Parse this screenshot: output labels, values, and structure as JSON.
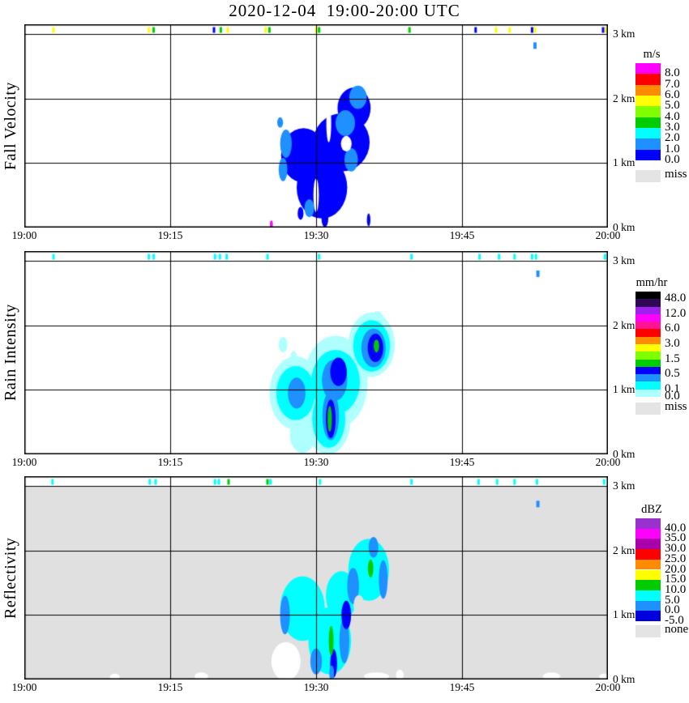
{
  "title": "2020-12-04  19:00-20:00 UTC",
  "chart_data": [
    {
      "type": "heatmap",
      "ylabel": "Fall Velocity",
      "background": "#FFFFFF",
      "x_axis": {
        "start": "19:00",
        "end": "20:00"
      },
      "xticks": [
        {
          "t": 0,
          "label": "19:00"
        },
        {
          "t": 15,
          "label": "19:15"
        },
        {
          "t": 30,
          "label": "19:30"
        },
        {
          "t": 45,
          "label": "19:45"
        },
        {
          "t": 60,
          "label": "20:00"
        }
      ],
      "yticks": [
        {
          "h": 3,
          "label": "3 km"
        },
        {
          "h": 2,
          "label": "2 km"
        },
        {
          "h": 1,
          "label": "1 km"
        },
        {
          "h": 0,
          "label": "0 km"
        }
      ],
      "legend": {
        "title": "m/s",
        "entries": [
          {
            "c": "#FF00FF",
            "l": "8.0"
          },
          {
            "c": "#FF0000",
            "l": "7.0"
          },
          {
            "c": "#FF8C00",
            "l": "6.0"
          },
          {
            "c": "#FFFF00",
            "l": "5.0"
          },
          {
            "c": "#7FFF00",
            "l": "4.0"
          },
          {
            "c": "#00CC00",
            "l": "3.0"
          },
          {
            "c": "#00FFFF",
            "l": "2.0"
          },
          {
            "c": "#1E90FF",
            "l": "1.0"
          },
          {
            "c": "#0000FF",
            "l": "0.0"
          }
        ],
        "missing": {
          "c": "#E4E4E4",
          "l": "miss"
        }
      },
      "echo_patches": [
        {
          "c": "#0000FF",
          "t": 33.9,
          "h": 1.85,
          "rt": 1.7,
          "rh": 0.32
        },
        {
          "c": "#0000FF",
          "t": 32.6,
          "h": 1.32,
          "rt": 2.9,
          "rh": 0.45
        },
        {
          "c": "#0000FF",
          "t": 28.7,
          "h": 1.12,
          "rt": 2.3,
          "rh": 0.42
        },
        {
          "c": "#0000FF",
          "t": 30.6,
          "h": 0.62,
          "rt": 2.6,
          "rh": 0.48
        },
        {
          "c": "#1E90FF",
          "t": 34.3,
          "h": 2.02,
          "rt": 0.9,
          "rh": 0.18
        },
        {
          "c": "#1E90FF",
          "t": 33.0,
          "h": 1.62,
          "rt": 1.0,
          "rh": 0.2
        },
        {
          "c": "#1E90FF",
          "t": 26.9,
          "h": 1.3,
          "rt": 0.6,
          "rh": 0.22
        },
        {
          "c": "#1E90FF",
          "t": 26.6,
          "h": 0.9,
          "rt": 0.45,
          "rh": 0.18
        },
        {
          "c": "#1E90FF",
          "t": 33.6,
          "h": 1.05,
          "rt": 0.7,
          "rh": 0.18
        },
        {
          "c": "#1E90FF",
          "t": 29.3,
          "h": 0.3,
          "rt": 0.5,
          "rh": 0.14
        },
        {
          "c": "#1E90FF",
          "t": 26.3,
          "h": 1.63,
          "rt": 0.3,
          "rh": 0.08
        },
        {
          "c": "#FFFFFF",
          "t": 33.1,
          "h": 1.3,
          "rt": 0.55,
          "rh": 0.12
        },
        {
          "c": "#FFFFFF",
          "t": 31.3,
          "h": 1.62,
          "rt": 0.25,
          "rh": 0.3
        },
        {
          "c": "#FFFFFF",
          "t": 30.0,
          "h": 0.5,
          "rt": 0.28,
          "rh": 0.26
        },
        {
          "c": "#0000FF",
          "t": 30.9,
          "h": 0.14,
          "rt": 0.35,
          "rh": 0.13
        },
        {
          "c": "#0000FF",
          "t": 28.4,
          "h": 0.22,
          "rt": 0.3,
          "rh": 0.1
        },
        {
          "c": "#0000FF",
          "t": 35.4,
          "h": 0.12,
          "rt": 0.18,
          "rh": 0.1
        },
        {
          "c": "#FF00FF",
          "t": 25.4,
          "h": 0.05,
          "rt": 0.15,
          "rh": 0.06
        }
      ],
      "top_specks": [
        {
          "t": 3.0,
          "c": "#FFFF00"
        },
        {
          "t": 12.8,
          "c": "#FFFF00"
        },
        {
          "t": 13.3,
          "c": "#00CC00"
        },
        {
          "t": 19.5,
          "c": "#0000FF"
        },
        {
          "t": 20.2,
          "c": "#00CC00"
        },
        {
          "t": 20.9,
          "c": "#FFFF00"
        },
        {
          "t": 24.8,
          "c": "#FFFF00"
        },
        {
          "t": 25.2,
          "c": "#00CC00"
        },
        {
          "t": 30.0,
          "c": "#FFFF00"
        },
        {
          "t": 30.3,
          "c": "#00CC00"
        },
        {
          "t": 39.6,
          "c": "#00CC00"
        },
        {
          "t": 46.4,
          "c": "#0000FF"
        },
        {
          "t": 48.5,
          "c": "#FFFF00"
        },
        {
          "t": 49.9,
          "c": "#FFFF00"
        },
        {
          "t": 52.2,
          "c": "#0000FF"
        },
        {
          "t": 52.5,
          "c": "#FFFF00"
        },
        {
          "t": 59.5,
          "c": "#0000FF"
        },
        {
          "t": 59.8,
          "c": "#FFFF00"
        },
        {
          "t": 52.5,
          "h": 2.82,
          "c": "#1E90FF"
        }
      ]
    },
    {
      "type": "heatmap",
      "ylabel": "Rain Intensity",
      "background": "#FFFFFF",
      "x_axis": {
        "start": "19:00",
        "end": "20:00"
      },
      "xticks": [
        {
          "t": 0,
          "label": "19:00"
        },
        {
          "t": 15,
          "label": "19:15"
        },
        {
          "t": 30,
          "label": "19:30"
        },
        {
          "t": 45,
          "label": "19:45"
        },
        {
          "t": 60,
          "label": "20:00"
        }
      ],
      "yticks": [
        {
          "h": 3,
          "label": "3 km"
        },
        {
          "h": 2,
          "label": "2 km"
        },
        {
          "h": 1,
          "label": "1 km"
        },
        {
          "h": 0,
          "label": "0 km"
        }
      ],
      "legend": {
        "title": "mm/hr",
        "entries": [
          {
            "c": "#000000",
            "l": "48.0"
          },
          {
            "c": "#2E0854",
            "l": ""
          },
          {
            "c": "#A020F0",
            "l": "12.0"
          },
          {
            "c": "#FF00FF",
            "l": ""
          },
          {
            "c": "#FF1493",
            "l": "6.0"
          },
          {
            "c": "#FF0000",
            "l": ""
          },
          {
            "c": "#FF8C00",
            "l": "3.0"
          },
          {
            "c": "#FFFF00",
            "l": ""
          },
          {
            "c": "#7FFF00",
            "l": "1.5"
          },
          {
            "c": "#00CC00",
            "l": ""
          },
          {
            "c": "#0000FF",
            "l": "0.5"
          },
          {
            "c": "#1E90FF",
            "l": ""
          },
          {
            "c": "#00FFFF",
            "l": "0.1"
          },
          {
            "c": "#B0FFFF",
            "l": "0.0"
          }
        ],
        "missing": {
          "c": "#E4E4E4",
          "l": "miss"
        }
      },
      "echo_patches": [
        {
          "c": "#B0FFFF",
          "t": 35.7,
          "h": 1.7,
          "rt": 2.4,
          "rh": 0.5
        },
        {
          "c": "#B0FFFF",
          "t": 36.3,
          "h": 2.0,
          "rt": 0.8,
          "rh": 0.22
        },
        {
          "c": "#B0FFFF",
          "t": 32.0,
          "h": 1.12,
          "rt": 3.3,
          "rh": 0.72
        },
        {
          "c": "#B0FFFF",
          "t": 27.9,
          "h": 0.95,
          "rt": 2.7,
          "rh": 0.57
        },
        {
          "c": "#B0FFFF",
          "t": 31.2,
          "h": 0.5,
          "rt": 2.3,
          "rh": 0.5
        },
        {
          "c": "#B0FFFF",
          "t": 28.6,
          "h": 0.3,
          "rt": 1.3,
          "rh": 0.28
        },
        {
          "c": "#B0FFFF",
          "t": 26.6,
          "h": 1.7,
          "rt": 0.45,
          "rh": 0.12
        },
        {
          "c": "#B0FFFF",
          "t": 27.7,
          "h": 1.5,
          "rt": 0.35,
          "rh": 0.1
        },
        {
          "c": "#00FFFF",
          "t": 35.7,
          "h": 1.68,
          "rt": 1.9,
          "rh": 0.4
        },
        {
          "c": "#00FFFF",
          "t": 32.0,
          "h": 1.12,
          "rt": 2.5,
          "rh": 0.5
        },
        {
          "c": "#00FFFF",
          "t": 27.9,
          "h": 0.95,
          "rt": 2.0,
          "rh": 0.42
        },
        {
          "c": "#00FFFF",
          "t": 31.3,
          "h": 0.55,
          "rt": 1.7,
          "rh": 0.45
        },
        {
          "c": "#1E90FF",
          "t": 35.9,
          "h": 1.65,
          "rt": 1.25,
          "rh": 0.3
        },
        {
          "c": "#1E90FF",
          "t": 31.9,
          "h": 1.15,
          "rt": 1.3,
          "rh": 0.32
        },
        {
          "c": "#1E90FF",
          "t": 28.0,
          "h": 0.95,
          "rt": 0.9,
          "rh": 0.24
        },
        {
          "c": "#1E90FF",
          "t": 31.5,
          "h": 0.6,
          "rt": 0.85,
          "rh": 0.38
        },
        {
          "c": "#0000FF",
          "t": 36.1,
          "h": 1.65,
          "rt": 0.8,
          "rh": 0.22
        },
        {
          "c": "#0000FF",
          "t": 32.3,
          "h": 1.28,
          "rt": 0.85,
          "rh": 0.22
        },
        {
          "c": "#0000FF",
          "t": 31.5,
          "h": 0.55,
          "rt": 0.5,
          "rh": 0.3
        },
        {
          "c": "#00CC00",
          "t": 36.2,
          "h": 1.68,
          "rt": 0.28,
          "rh": 0.1
        },
        {
          "c": "#00CC00",
          "t": 31.4,
          "h": 0.55,
          "rt": 0.22,
          "rh": 0.2
        }
      ],
      "top_specks": [
        {
          "t": 3.0
        },
        {
          "t": 12.8
        },
        {
          "t": 13.3
        },
        {
          "t": 19.6
        },
        {
          "t": 20.1
        },
        {
          "t": 20.8
        },
        {
          "t": 25.0
        },
        {
          "t": 30.3
        },
        {
          "t": 39.8
        },
        {
          "t": 46.8
        },
        {
          "t": 48.8
        },
        {
          "t": 50.4
        },
        {
          "t": 52.2
        },
        {
          "t": 52.6
        },
        {
          "t": 59.7
        },
        {
          "t": 52.8,
          "h": 2.8,
          "c": "#1E90FF"
        }
      ]
    },
    {
      "type": "heatmap",
      "ylabel": "Reflectivity",
      "background": "#E0E0E0",
      "x_axis": {
        "start": "19:00",
        "end": "20:00"
      },
      "xticks": [
        {
          "t": 0,
          "label": "19:00"
        },
        {
          "t": 15,
          "label": "19:15"
        },
        {
          "t": 30,
          "label": "19:30"
        },
        {
          "t": 45,
          "label": "19:45"
        },
        {
          "t": 60,
          "label": "20:00"
        }
      ],
      "yticks": [
        {
          "h": 3,
          "label": "3 km"
        },
        {
          "h": 2,
          "label": "2 km"
        },
        {
          "h": 1,
          "label": "1 km"
        },
        {
          "h": 0,
          "label": "0 km"
        }
      ],
      "legend": {
        "title": "dBZ",
        "entries": [
          {
            "c": "#9932CC",
            "l": "40.0"
          },
          {
            "c": "#FF00FF",
            "l": "35.0"
          },
          {
            "c": "#AA00AA",
            "l": "30.0"
          },
          {
            "c": "#FF0000",
            "l": "25.0"
          },
          {
            "c": "#FF8C00",
            "l": "20.0"
          },
          {
            "c": "#FFFF00",
            "l": "15.0"
          },
          {
            "c": "#00CC00",
            "l": "10.0"
          },
          {
            "c": "#00FFFF",
            "l": "5.0"
          },
          {
            "c": "#1E90FF",
            "l": "0.0"
          },
          {
            "c": "#0000DD",
            "l": "-5.0"
          }
        ],
        "missing": {
          "c": "#E4E4E4",
          "l": "none"
        }
      },
      "echo_patches": [
        {
          "c": "#FFFFFF",
          "t": 26.9,
          "h": 0.28,
          "rt": 1.5,
          "rh": 0.3
        },
        {
          "c": "#FFFFFF",
          "t": 9.3,
          "h": 0.04,
          "rt": 0.5,
          "rh": 0.05
        },
        {
          "c": "#FFFFFF",
          "t": 18.2,
          "h": 0.05,
          "rt": 0.7,
          "rh": 0.06
        },
        {
          "c": "#FFFFFF",
          "t": 36.2,
          "h": 0.05,
          "rt": 1.3,
          "rh": 0.06
        },
        {
          "c": "#FFFFFF",
          "t": 38.6,
          "h": 0.07,
          "rt": 0.4,
          "rh": 0.08
        },
        {
          "c": "#FFFFFF",
          "t": 54.2,
          "h": 0.05,
          "rt": 0.9,
          "rh": 0.06
        },
        {
          "c": "#FFFFFF",
          "t": 59.6,
          "h": 0.04,
          "rt": 0.5,
          "rh": 0.05
        },
        {
          "c": "#00FFFF",
          "t": 35.4,
          "h": 1.7,
          "rt": 2.1,
          "rh": 0.48
        },
        {
          "c": "#1E90FF",
          "t": 35.9,
          "h": 2.05,
          "rt": 0.5,
          "rh": 0.16
        },
        {
          "c": "#00FFFF",
          "t": 28.6,
          "h": 1.1,
          "rt": 2.3,
          "rh": 0.5
        },
        {
          "c": "#00FFFF",
          "t": 31.4,
          "h": 0.6,
          "rt": 2.2,
          "rh": 0.52
        },
        {
          "c": "#00FFFF",
          "t": 32.6,
          "h": 1.3,
          "rt": 1.6,
          "rh": 0.38
        },
        {
          "c": "#1E90FF",
          "t": 33.8,
          "h": 1.45,
          "rt": 0.6,
          "rh": 0.28
        },
        {
          "c": "#1E90FF",
          "t": 36.9,
          "h": 1.55,
          "rt": 0.45,
          "rh": 0.3
        },
        {
          "c": "#1E90FF",
          "t": 26.8,
          "h": 1.0,
          "rt": 0.5,
          "rh": 0.3
        },
        {
          "c": "#1E90FF",
          "t": 30.0,
          "h": 0.28,
          "rt": 0.6,
          "rh": 0.2
        },
        {
          "c": "#1E90FF",
          "t": 32.9,
          "h": 0.6,
          "rt": 0.5,
          "rh": 0.35
        },
        {
          "c": "#0000FF",
          "t": 33.1,
          "h": 1.0,
          "rt": 0.5,
          "rh": 0.22
        },
        {
          "c": "#0000FF",
          "t": 31.8,
          "h": 0.25,
          "rt": 0.35,
          "rh": 0.22
        },
        {
          "c": "#1E90FF",
          "t": 31.6,
          "h": 0.1,
          "rt": 0.25,
          "rh": 0.12
        },
        {
          "c": "#E0E0E0",
          "t": 34.4,
          "h": 1.15,
          "rt": 0.55,
          "rh": 0.16
        },
        {
          "c": "#00CC00",
          "t": 35.6,
          "h": 1.72,
          "rt": 0.28,
          "rh": 0.14
        },
        {
          "c": "#00CC00",
          "t": 31.55,
          "h": 0.6,
          "rt": 0.25,
          "rh": 0.23
        }
      ],
      "top_specks": [
        {
          "t": 2.9
        },
        {
          "t": 12.9
        },
        {
          "t": 13.5
        },
        {
          "t": 19.6
        },
        {
          "t": 20.0
        },
        {
          "t": 21.0,
          "c": "#00CC00"
        },
        {
          "t": 25.0,
          "c": "#00CC00"
        },
        {
          "t": 25.3
        },
        {
          "t": 30.4
        },
        {
          "t": 39.8
        },
        {
          "t": 46.7
        },
        {
          "t": 48.6
        },
        {
          "t": 50.4
        },
        {
          "t": 52.7
        },
        {
          "t": 59.6
        },
        {
          "t": 52.8,
          "h": 2.72,
          "c": "#1E90FF"
        }
      ]
    }
  ]
}
